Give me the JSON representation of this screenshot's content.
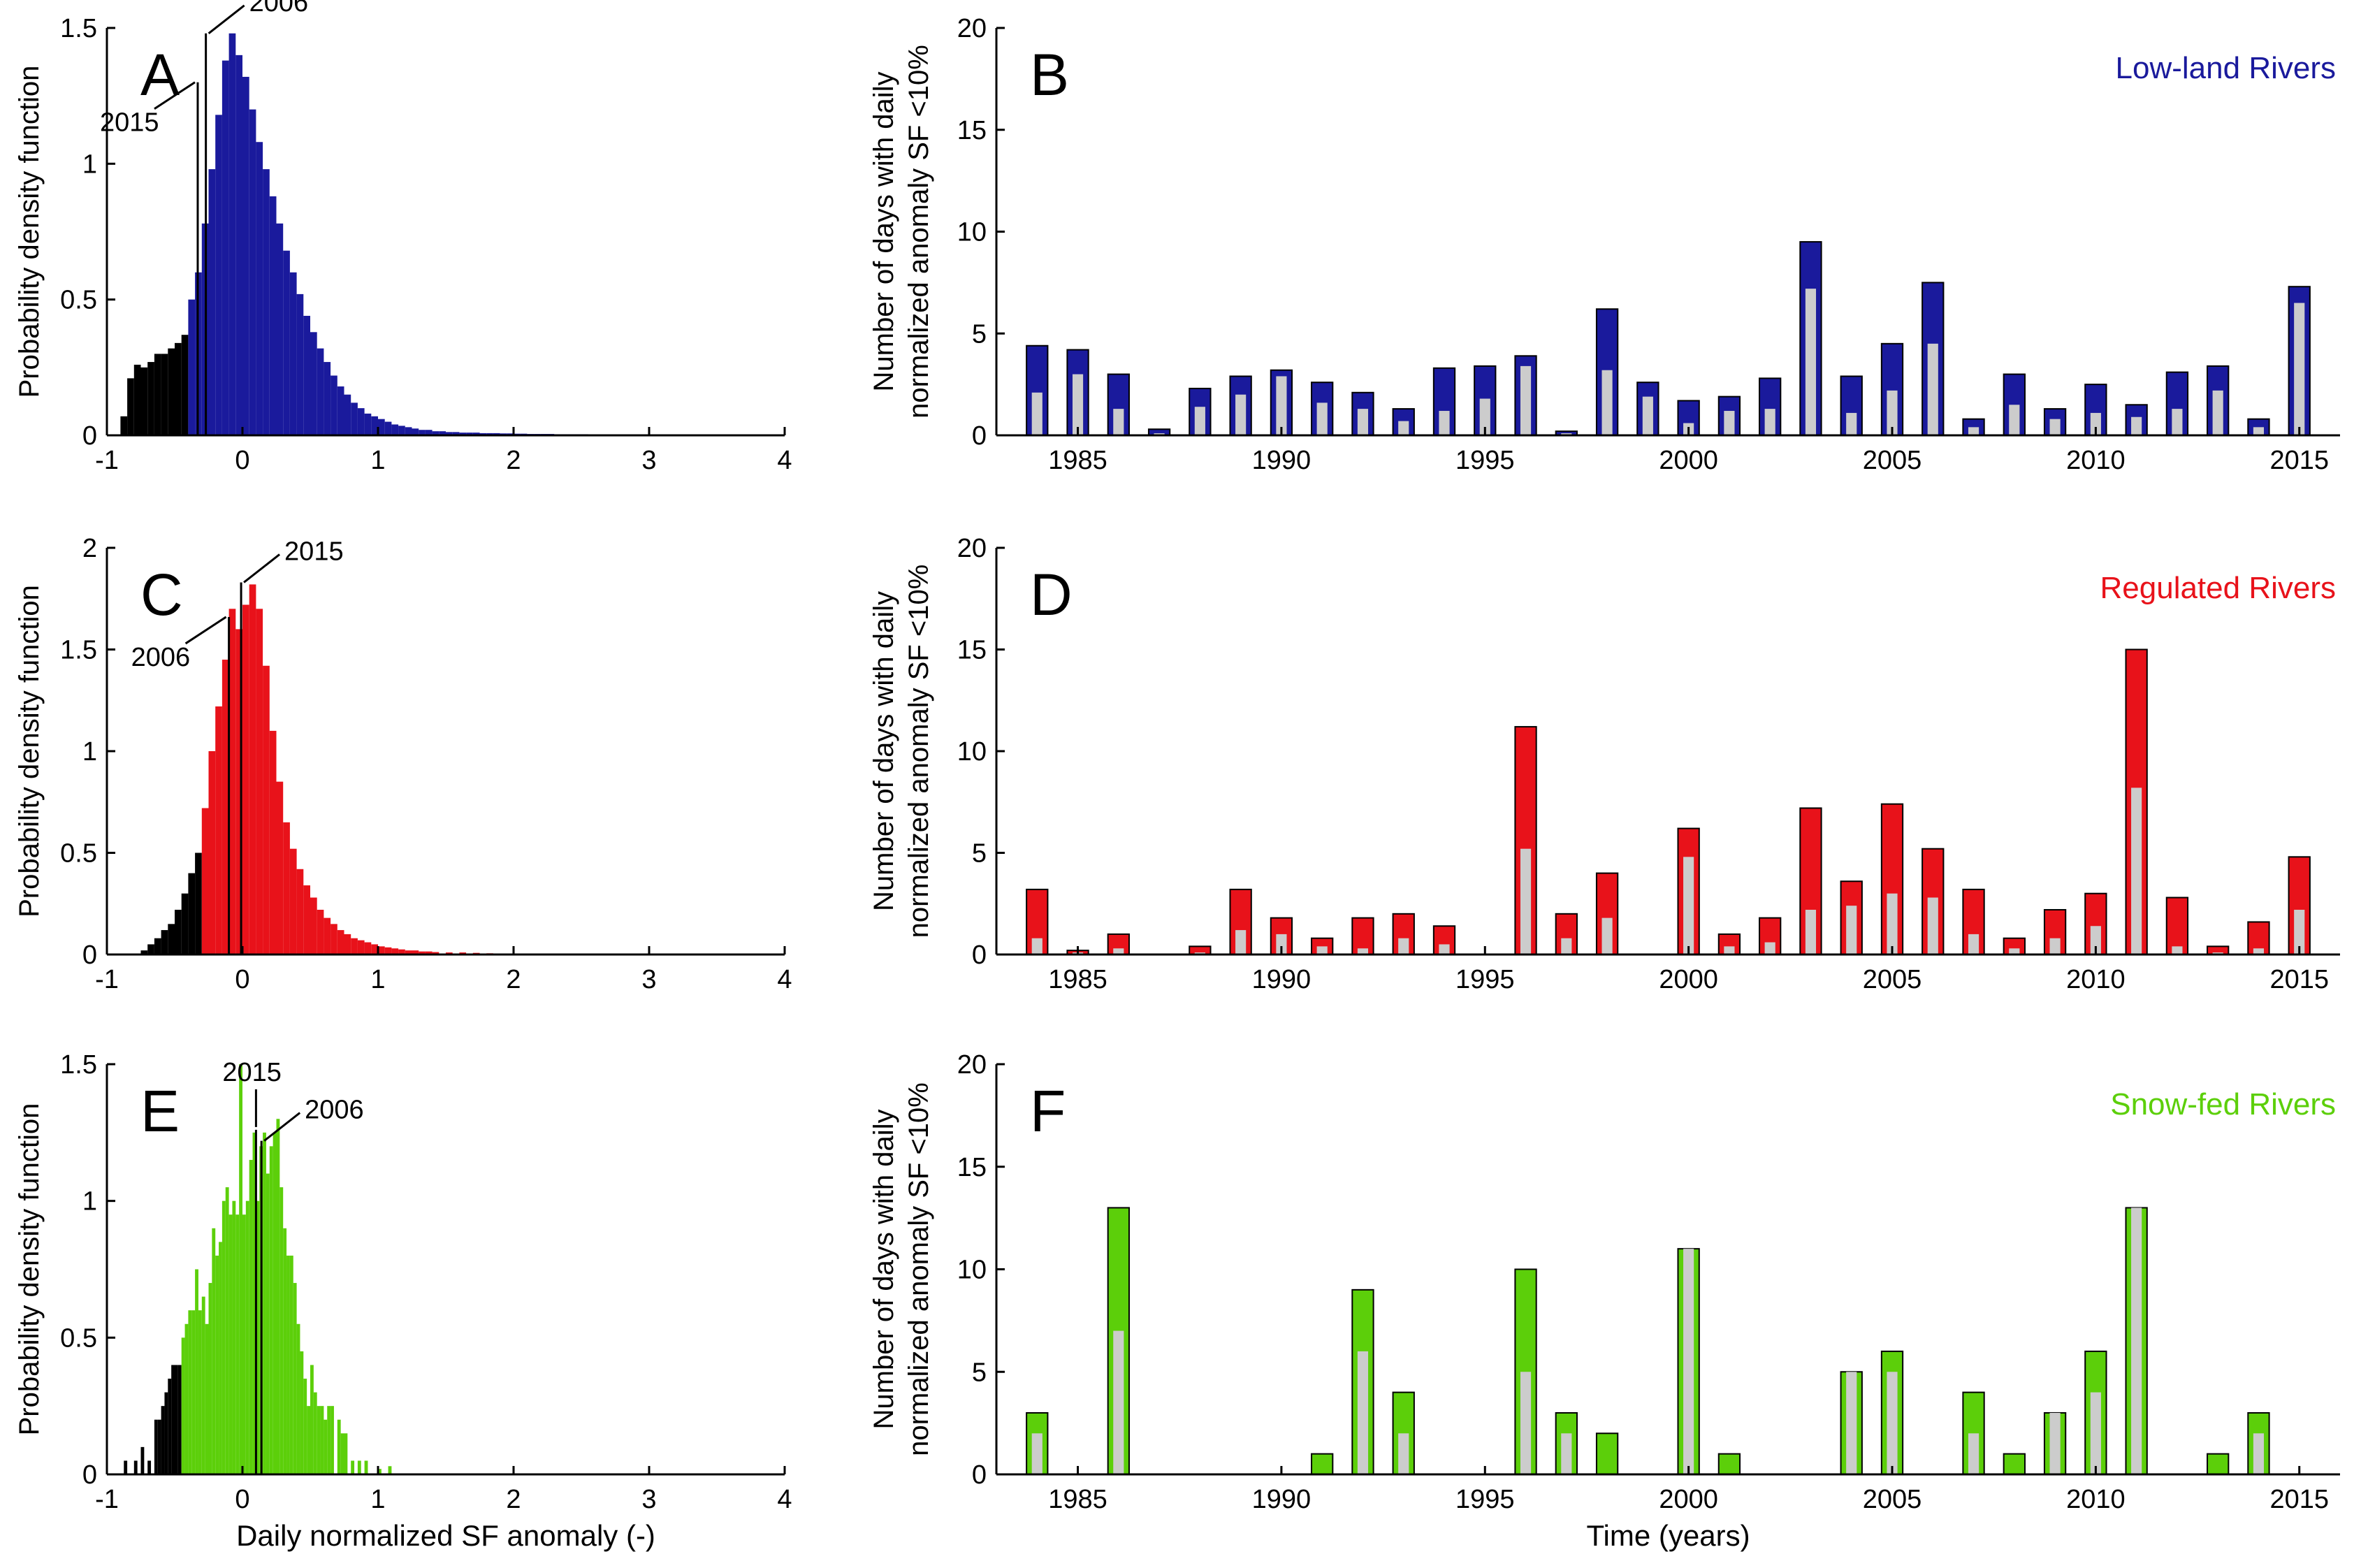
{
  "colors": {
    "low_land": "#1a1a9c",
    "regulated": "#e8121a",
    "snow_fed": "#5ccf0a",
    "tail": "#000000",
    "grey_bar": "#cccccc"
  },
  "chart_data": [
    {
      "id": "A",
      "type": "histogram",
      "panel_letter": "A",
      "ylabel": "Probability density function",
      "xlabel": "",
      "xlim": [
        -1,
        4
      ],
      "ylim": [
        0,
        1.5
      ],
      "xticks": [
        -1,
        0,
        1,
        2,
        3,
        4
      ],
      "yticks": [
        0,
        0.5,
        1,
        1.5
      ],
      "ytick_labels": [
        "0",
        "0.5",
        "1",
        "1.5"
      ],
      "bin_width": 0.05,
      "threshold": -0.4,
      "color_key": "low_land",
      "bins": [
        [
          -0.9,
          0.07
        ],
        [
          -0.85,
          0.21
        ],
        [
          -0.8,
          0.26
        ],
        [
          -0.75,
          0.25
        ],
        [
          -0.7,
          0.27
        ],
        [
          -0.65,
          0.3
        ],
        [
          -0.6,
          0.3
        ],
        [
          -0.55,
          0.32
        ],
        [
          -0.5,
          0.34
        ],
        [
          -0.45,
          0.37
        ],
        [
          -0.4,
          0.5
        ],
        [
          -0.35,
          0.6
        ],
        [
          -0.3,
          0.78
        ],
        [
          -0.25,
          0.98
        ],
        [
          -0.2,
          1.18
        ],
        [
          -0.15,
          1.38
        ],
        [
          -0.1,
          1.48
        ],
        [
          -0.05,
          1.4
        ],
        [
          0.0,
          1.32
        ],
        [
          0.05,
          1.2
        ],
        [
          0.1,
          1.08
        ],
        [
          0.15,
          0.98
        ],
        [
          0.2,
          0.88
        ],
        [
          0.25,
          0.78
        ],
        [
          0.3,
          0.68
        ],
        [
          0.35,
          0.6
        ],
        [
          0.4,
          0.52
        ],
        [
          0.45,
          0.44
        ],
        [
          0.5,
          0.38
        ],
        [
          0.55,
          0.32
        ],
        [
          0.6,
          0.27
        ],
        [
          0.65,
          0.22
        ],
        [
          0.7,
          0.18
        ],
        [
          0.75,
          0.15
        ],
        [
          0.8,
          0.12
        ],
        [
          0.85,
          0.1
        ],
        [
          0.9,
          0.08
        ],
        [
          0.95,
          0.07
        ],
        [
          1.0,
          0.06
        ],
        [
          1.05,
          0.05
        ],
        [
          1.1,
          0.04
        ],
        [
          1.15,
          0.035
        ],
        [
          1.2,
          0.03
        ],
        [
          1.25,
          0.025
        ],
        [
          1.3,
          0.02
        ],
        [
          1.35,
          0.02
        ],
        [
          1.4,
          0.015
        ],
        [
          1.45,
          0.015
        ],
        [
          1.5,
          0.012
        ],
        [
          1.55,
          0.012
        ],
        [
          1.6,
          0.01
        ],
        [
          1.65,
          0.01
        ],
        [
          1.7,
          0.01
        ],
        [
          1.75,
          0.008
        ],
        [
          1.8,
          0.008
        ],
        [
          1.85,
          0.008
        ],
        [
          1.9,
          0.007
        ],
        [
          1.95,
          0.007
        ],
        [
          2.0,
          0.006
        ],
        [
          2.05,
          0.006
        ],
        [
          2.1,
          0.005
        ],
        [
          2.15,
          0.005
        ],
        [
          2.2,
          0.005
        ],
        [
          2.25,
          0.005
        ],
        [
          2.3,
          0.004
        ],
        [
          2.35,
          0.004
        ],
        [
          2.4,
          0.004
        ],
        [
          2.45,
          0.004
        ],
        [
          2.5,
          0.004
        ],
        [
          2.6,
          0.003
        ],
        [
          2.7,
          0.003
        ],
        [
          2.8,
          0.003
        ],
        [
          2.9,
          0.003
        ],
        [
          3.0,
          0.003
        ],
        [
          3.2,
          0.002
        ],
        [
          3.4,
          0.002
        ],
        [
          3.6,
          0.002
        ],
        [
          3.8,
          0.002
        ]
      ],
      "markers": [
        {
          "label": "2006",
          "x": -0.27,
          "y_top": 1.48,
          "label_side": "right"
        },
        {
          "label": "2015",
          "x": -0.33,
          "y_top": 1.3,
          "label_side": "left"
        }
      ]
    },
    {
      "id": "C",
      "type": "histogram",
      "panel_letter": "C",
      "ylabel": "Probability density function",
      "xlabel": "",
      "xlim": [
        -1,
        4
      ],
      "ylim": [
        0,
        2
      ],
      "xticks": [
        -1,
        0,
        1,
        2,
        3,
        4
      ],
      "yticks": [
        0,
        0.5,
        1,
        1.5,
        2
      ],
      "ytick_labels": [
        "0",
        "0.5",
        "1",
        "1.5",
        "2"
      ],
      "bin_width": 0.05,
      "threshold": -0.3,
      "color_key": "regulated",
      "bins": [
        [
          -0.75,
          0.02
        ],
        [
          -0.7,
          0.05
        ],
        [
          -0.65,
          0.08
        ],
        [
          -0.6,
          0.12
        ],
        [
          -0.55,
          0.15
        ],
        [
          -0.5,
          0.22
        ],
        [
          -0.45,
          0.3
        ],
        [
          -0.4,
          0.4
        ],
        [
          -0.35,
          0.5
        ],
        [
          -0.3,
          0.72
        ],
        [
          -0.25,
          1.0
        ],
        [
          -0.2,
          1.22
        ],
        [
          -0.15,
          1.45
        ],
        [
          -0.1,
          1.7
        ],
        [
          -0.05,
          1.6
        ],
        [
          0.0,
          1.72
        ],
        [
          0.05,
          1.82
        ],
        [
          0.1,
          1.7
        ],
        [
          0.15,
          1.42
        ],
        [
          0.2,
          1.1
        ],
        [
          0.25,
          0.85
        ],
        [
          0.3,
          0.65
        ],
        [
          0.35,
          0.52
        ],
        [
          0.4,
          0.42
        ],
        [
          0.45,
          0.34
        ],
        [
          0.5,
          0.28
        ],
        [
          0.55,
          0.22
        ],
        [
          0.6,
          0.18
        ],
        [
          0.65,
          0.15
        ],
        [
          0.7,
          0.12
        ],
        [
          0.75,
          0.1
        ],
        [
          0.8,
          0.08
        ],
        [
          0.85,
          0.07
        ],
        [
          0.9,
          0.06
        ],
        [
          0.95,
          0.05
        ],
        [
          1.0,
          0.04
        ],
        [
          1.05,
          0.035
        ],
        [
          1.1,
          0.03
        ],
        [
          1.15,
          0.025
        ],
        [
          1.2,
          0.02
        ],
        [
          1.25,
          0.02
        ],
        [
          1.3,
          0.015
        ],
        [
          1.35,
          0.015
        ],
        [
          1.4,
          0.012
        ],
        [
          1.5,
          0.01
        ],
        [
          1.6,
          0.01
        ],
        [
          1.7,
          0.008
        ],
        [
          1.8,
          0.006
        ],
        [
          1.9,
          0.005
        ],
        [
          2.0,
          0.005
        ],
        [
          2.5,
          0.005
        ]
      ],
      "markers": [
        {
          "label": "2015",
          "x": -0.01,
          "y_top": 1.83,
          "label_side": "right"
        },
        {
          "label": "2006",
          "x": -0.1,
          "y_top": 1.66,
          "label_side": "left"
        }
      ]
    },
    {
      "id": "E",
      "type": "histogram",
      "panel_letter": "E",
      "ylabel": "Probability density function",
      "xlabel": "Daily normalized SF anomaly (-)",
      "xlim": [
        -1,
        4
      ],
      "ylim": [
        0,
        1.5
      ],
      "xticks": [
        -1,
        0,
        1,
        2,
        3,
        4
      ],
      "yticks": [
        0,
        0.5,
        1,
        1.5
      ],
      "ytick_labels": [
        "0",
        "0.5",
        "1",
        "1.5"
      ],
      "bin_width": 0.025,
      "threshold": -0.45,
      "color_key": "snow_fed",
      "bins": [
        [
          -0.875,
          0.05
        ],
        [
          -0.8,
          0.05
        ],
        [
          -0.75,
          0.1
        ],
        [
          -0.7,
          0.05
        ],
        [
          -0.65,
          0.2
        ],
        [
          -0.625,
          0.2
        ],
        [
          -0.6,
          0.25
        ],
        [
          -0.575,
          0.3
        ],
        [
          -0.55,
          0.35
        ],
        [
          -0.525,
          0.4
        ],
        [
          -0.5,
          0.4
        ],
        [
          -0.475,
          0.4
        ],
        [
          -0.45,
          0.5
        ],
        [
          -0.425,
          0.55
        ],
        [
          -0.4,
          0.6
        ],
        [
          -0.375,
          0.6
        ],
        [
          -0.35,
          0.75
        ],
        [
          -0.325,
          0.6
        ],
        [
          -0.3,
          0.65
        ],
        [
          -0.275,
          0.55
        ],
        [
          -0.25,
          0.7
        ],
        [
          -0.225,
          0.9
        ],
        [
          -0.2,
          0.8
        ],
        [
          -0.175,
          0.85
        ],
        [
          -0.15,
          1.0
        ],
        [
          -0.125,
          1.05
        ],
        [
          -0.1,
          0.95
        ],
        [
          -0.075,
          1.0
        ],
        [
          -0.05,
          0.95
        ],
        [
          -0.025,
          1.5
        ],
        [
          0.0,
          0.95
        ],
        [
          0.025,
          1.0
        ],
        [
          0.05,
          1.15
        ],
        [
          0.075,
          1.25
        ],
        [
          0.1,
          1.0
        ],
        [
          0.125,
          1.2
        ],
        [
          0.15,
          1.25
        ],
        [
          0.175,
          1.1
        ],
        [
          0.2,
          1.2
        ],
        [
          0.225,
          1.25
        ],
        [
          0.25,
          1.3
        ],
        [
          0.275,
          1.05
        ],
        [
          0.3,
          0.9
        ],
        [
          0.325,
          0.8
        ],
        [
          0.35,
          0.8
        ],
        [
          0.375,
          0.7
        ],
        [
          0.4,
          0.55
        ],
        [
          0.425,
          0.45
        ],
        [
          0.45,
          0.35
        ],
        [
          0.475,
          0.25
        ],
        [
          0.5,
          0.4
        ],
        [
          0.525,
          0.3
        ],
        [
          0.55,
          0.25
        ],
        [
          0.575,
          0.25
        ],
        [
          0.6,
          0.2
        ],
        [
          0.625,
          0.25
        ],
        [
          0.65,
          0.25
        ],
        [
          0.7,
          0.2
        ],
        [
          0.725,
          0.15
        ],
        [
          0.75,
          0.15
        ],
        [
          0.8,
          0.05
        ],
        [
          0.85,
          0.05
        ],
        [
          0.9,
          0.05
        ],
        [
          1.0,
          0.02
        ],
        [
          1.075,
          0.03
        ]
      ],
      "markers": [
        {
          "label": "2015",
          "x": 0.1,
          "y_top": 1.26,
          "label_side": "above"
        },
        {
          "label": "2006",
          "x": 0.14,
          "y_top": 1.22,
          "label_side": "right"
        }
      ]
    },
    {
      "id": "B",
      "type": "bar",
      "panel_letter": "B",
      "title": "Low-land Rivers",
      "ylabel": [
        "Number of days with daily",
        "normalized anomaly SF <10%"
      ],
      "xlabel": "",
      "xlim": [
        1983,
        2016
      ],
      "ylim": [
        0,
        20
      ],
      "xticks": [
        1985,
        1990,
        1995,
        2000,
        2005,
        2010,
        2015
      ],
      "yticks": [
        0,
        5,
        10,
        15,
        20
      ],
      "color_key": "low_land",
      "years": [
        1984,
        1985,
        1986,
        1987,
        1988,
        1989,
        1990,
        1991,
        1992,
        1993,
        1994,
        1995,
        1996,
        1997,
        1998,
        1999,
        2000,
        2001,
        2002,
        2003,
        2004,
        2005,
        2006,
        2007,
        2008,
        2009,
        2010,
        2011,
        2012,
        2013,
        2014,
        2015
      ],
      "values": [
        4.4,
        4.2,
        3.0,
        0.3,
        2.3,
        2.9,
        3.2,
        2.6,
        2.1,
        1.3,
        3.3,
        3.4,
        3.9,
        0.2,
        6.2,
        2.6,
        1.7,
        1.9,
        2.8,
        9.5,
        2.9,
        4.5,
        7.5,
        0.8,
        3.0,
        1.3,
        2.5,
        1.5,
        3.1,
        3.4,
        0.8,
        7.3
      ],
      "values_grey": [
        2.1,
        3.0,
        1.3,
        0.1,
        1.4,
        2.0,
        2.9,
        1.6,
        1.3,
        0.7,
        1.2,
        1.8,
        3.4,
        0.1,
        3.2,
        1.9,
        0.6,
        1.2,
        1.3,
        7.2,
        1.1,
        2.2,
        4.5,
        0.4,
        1.5,
        0.8,
        1.1,
        0.9,
        1.3,
        2.2,
        0.4,
        6.5
      ]
    },
    {
      "id": "D",
      "type": "bar",
      "panel_letter": "D",
      "title": "Regulated Rivers",
      "ylabel": [
        "Number of days with daily",
        "normalized anomaly SF <10%"
      ],
      "xlabel": "",
      "xlim": [
        1983,
        2016
      ],
      "ylim": [
        0,
        20
      ],
      "xticks": [
        1985,
        1990,
        1995,
        2000,
        2005,
        2010,
        2015
      ],
      "yticks": [
        0,
        5,
        10,
        15,
        20
      ],
      "color_key": "regulated",
      "years": [
        1984,
        1985,
        1986,
        1987,
        1988,
        1989,
        1990,
        1991,
        1992,
        1993,
        1994,
        1995,
        1996,
        1997,
        1998,
        1999,
        2000,
        2001,
        2002,
        2003,
        2004,
        2005,
        2006,
        2007,
        2008,
        2009,
        2010,
        2011,
        2012,
        2013,
        2014,
        2015
      ],
      "values": [
        3.2,
        0.2,
        1.0,
        0,
        0.4,
        3.2,
        1.8,
        0.8,
        1.8,
        2.0,
        1.4,
        0,
        11.2,
        2.0,
        4.0,
        0,
        6.2,
        1.0,
        1.8,
        7.2,
        3.6,
        7.4,
        5.2,
        3.2,
        0.8,
        2.2,
        3.0,
        15.0,
        2.8,
        0.4,
        1.6,
        4.8
      ],
      "values_grey": [
        0.8,
        0.1,
        0.3,
        0,
        0.1,
        1.2,
        1.0,
        0.4,
        0.3,
        0.8,
        0.5,
        0,
        5.2,
        0.8,
        1.8,
        0,
        4.8,
        0.4,
        0.6,
        2.2,
        2.4,
        3.0,
        2.8,
        1.0,
        0.3,
        0.8,
        1.4,
        8.2,
        0.4,
        0.1,
        0.3,
        2.2
      ]
    },
    {
      "id": "F",
      "type": "bar",
      "panel_letter": "F",
      "title": "Snow-fed Rivers",
      "ylabel": [
        "Number of days with daily",
        "normalized anomaly SF <10%"
      ],
      "xlabel": "Time (years)",
      "xlim": [
        1983,
        2016
      ],
      "ylim": [
        0,
        20
      ],
      "xticks": [
        1985,
        1990,
        1995,
        2000,
        2005,
        2010,
        2015
      ],
      "yticks": [
        0,
        5,
        10,
        15,
        20
      ],
      "color_key": "snow_fed",
      "years": [
        1984,
        1985,
        1986,
        1987,
        1988,
        1989,
        1990,
        1991,
        1992,
        1993,
        1994,
        1995,
        1996,
        1997,
        1998,
        1999,
        2000,
        2001,
        2002,
        2003,
        2004,
        2005,
        2006,
        2007,
        2008,
        2009,
        2010,
        2011,
        2012,
        2013,
        2014,
        2015
      ],
      "values": [
        3,
        0,
        13,
        0,
        0,
        0,
        0,
        1,
        9,
        4,
        0,
        0,
        10,
        3,
        2,
        0,
        11,
        1,
        0,
        0,
        5,
        6,
        0,
        4,
        1,
        3,
        6,
        13,
        0,
        1,
        3,
        0
      ],
      "values_grey": [
        2,
        0,
        7,
        0,
        0,
        0,
        0,
        0,
        6,
        2,
        0,
        0,
        5,
        2,
        0,
        0,
        11,
        0,
        0,
        0,
        5,
        5,
        0,
        2,
        0,
        3,
        4,
        13,
        0,
        0,
        2,
        0
      ]
    }
  ]
}
